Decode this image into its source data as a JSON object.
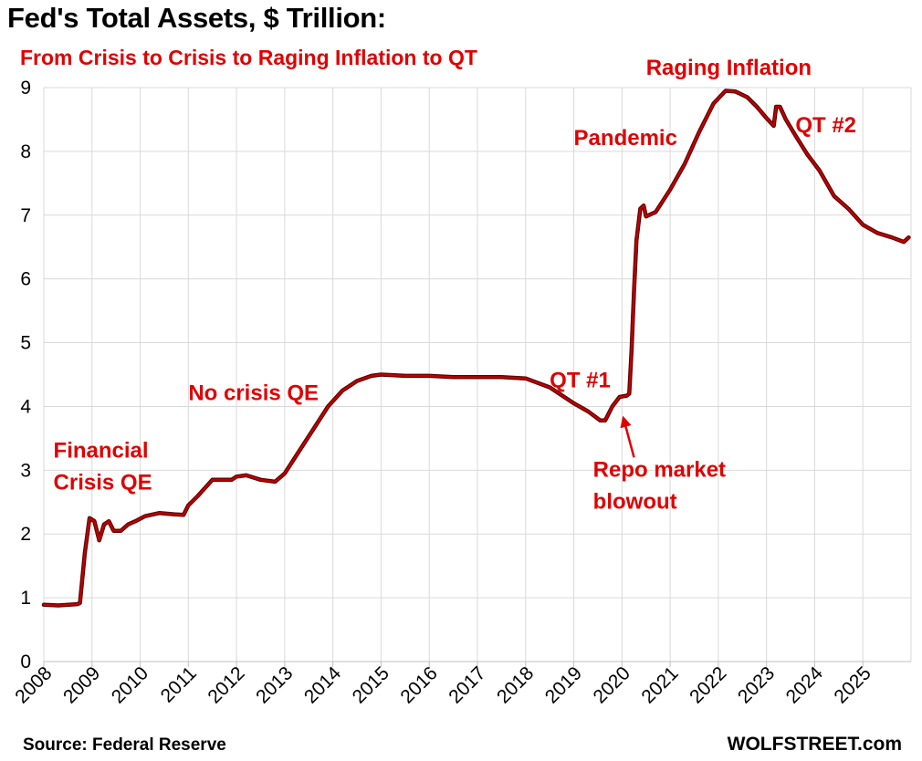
{
  "header": {
    "title": "Fed's Total Assets, $ Trillion:",
    "subtitle": "From Crisis to Crisis to Raging Inflation to QT"
  },
  "footer": {
    "source": "Source: Federal Reserve",
    "brand": "WOLFSTREET.com"
  },
  "colors": {
    "line": "#c00000",
    "line_outline": "#5a0000",
    "annotation": "#e00000",
    "grid": "#d9d9d9"
  },
  "chart_data": {
    "type": "line",
    "title": "Fed's Total Assets, $ Trillion:",
    "subtitle": "From Crisis to Crisis to Raging Inflation to QT",
    "xlabel": "",
    "ylabel": "",
    "xlim": [
      2008,
      2026
    ],
    "ylim": [
      0,
      9
    ],
    "grid": true,
    "legend": "none",
    "x_tick_labels": [
      "2008",
      "2009",
      "2010",
      "2011",
      "2012",
      "2013",
      "2014",
      "2015",
      "2016",
      "2017",
      "2018",
      "2019",
      "2020",
      "2021",
      "2022",
      "2023",
      "2024",
      "2025"
    ],
    "y_tick_labels": [
      "0",
      "1",
      "2",
      "3",
      "4",
      "5",
      "6",
      "7",
      "8",
      "9"
    ],
    "series": [
      {
        "name": "Fed Total Assets ($ Trillion)",
        "x": [
          2008.0,
          2008.3,
          2008.7,
          2008.75,
          2008.85,
          2008.95,
          2009.05,
          2009.15,
          2009.25,
          2009.35,
          2009.45,
          2009.6,
          2009.75,
          2009.9,
          2010.1,
          2010.4,
          2010.7,
          2010.9,
          2011.0,
          2011.2,
          2011.5,
          2011.9,
          2012.0,
          2012.2,
          2012.5,
          2012.8,
          2013.0,
          2013.3,
          2013.6,
          2013.9,
          2014.2,
          2014.5,
          2014.8,
          2015.0,
          2015.5,
          2016.0,
          2016.5,
          2017.0,
          2017.5,
          2018.0,
          2018.5,
          2019.0,
          2019.3,
          2019.55,
          2019.65,
          2019.8,
          2019.95,
          2020.1,
          2020.15,
          2020.2,
          2020.25,
          2020.3,
          2020.38,
          2020.45,
          2020.5,
          2020.7,
          2021.0,
          2021.3,
          2021.6,
          2021.9,
          2022.15,
          2022.35,
          2022.6,
          2022.8,
          2023.0,
          2023.15,
          2023.2,
          2023.28,
          2023.4,
          2023.6,
          2023.85,
          2024.1,
          2024.4,
          2024.7,
          2025.0,
          2025.3,
          2025.6,
          2025.85,
          2025.95
        ],
        "values": [
          0.89,
          0.88,
          0.9,
          0.92,
          1.7,
          2.25,
          2.2,
          1.9,
          2.15,
          2.2,
          2.05,
          2.05,
          2.15,
          2.2,
          2.28,
          2.33,
          2.31,
          2.3,
          2.45,
          2.6,
          2.85,
          2.85,
          2.9,
          2.92,
          2.85,
          2.82,
          2.95,
          3.3,
          3.65,
          4.0,
          4.25,
          4.4,
          4.48,
          4.5,
          4.48,
          4.48,
          4.46,
          4.46,
          4.46,
          4.44,
          4.3,
          4.05,
          3.92,
          3.78,
          3.78,
          4.0,
          4.15,
          4.17,
          4.2,
          4.9,
          5.8,
          6.6,
          7.1,
          7.15,
          6.98,
          7.05,
          7.4,
          7.8,
          8.3,
          8.75,
          8.95,
          8.94,
          8.85,
          8.7,
          8.52,
          8.4,
          8.7,
          8.7,
          8.5,
          8.25,
          7.95,
          7.7,
          7.3,
          7.1,
          6.85,
          6.72,
          6.65,
          6.58,
          6.65
        ]
      }
    ],
    "annotations": [
      {
        "text": "Financial",
        "x": 2008.2,
        "y": 3.2
      },
      {
        "text": "Crisis QE",
        "x": 2008.2,
        "y": 2.7
      },
      {
        "text": "No crisis QE",
        "x": 2011.0,
        "y": 4.1
      },
      {
        "text": "QT #1",
        "x": 2018.5,
        "y": 4.3
      },
      {
        "text": "Repo market",
        "x": 2019.4,
        "y": 2.9
      },
      {
        "text": "blowout",
        "x": 2019.4,
        "y": 2.4
      },
      {
        "text": "Pandemic",
        "x": 2019.0,
        "y": 8.1
      },
      {
        "text": "Raging  Inflation",
        "x": 2020.5,
        "y": 9.2
      },
      {
        "text": "QT #2",
        "x": 2023.6,
        "y": 8.3
      }
    ],
    "arrows": [
      {
        "from": [
          2020.25,
          3.2
        ],
        "to": [
          2020.03,
          3.82
        ]
      }
    ]
  }
}
